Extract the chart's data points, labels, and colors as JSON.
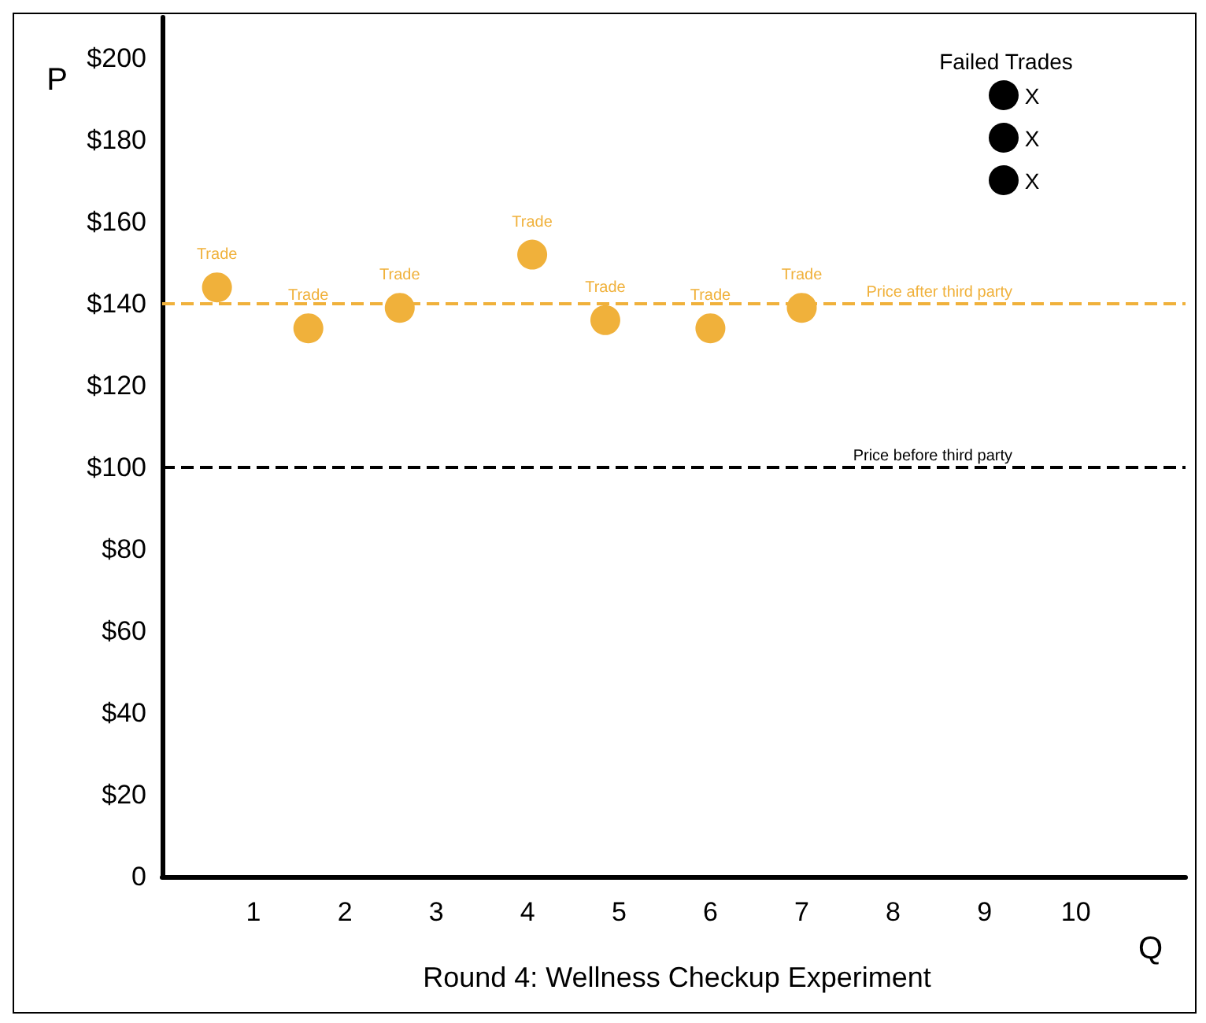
{
  "chart_data": {
    "type": "scatter",
    "title": "Round 4: Wellness Checkup Experiment",
    "xlabel": "Q",
    "ylabel": "P",
    "x": [
      0.6,
      1.6,
      2.6,
      4.05,
      4.85,
      6.0,
      7.0
    ],
    "series": [
      {
        "color": "#f0b13b",
        "values": [
          144,
          134,
          139,
          152,
          136,
          134,
          139
        ],
        "value_labels": [
          "Trade",
          "Trade",
          "Trade",
          "Trade",
          "Trade",
          "Trade",
          "Trade"
        ]
      }
    ],
    "xlim": [
      0,
      11.2
    ],
    "xticks": [
      1,
      2,
      3,
      4,
      5,
      6,
      7,
      8,
      9,
      10
    ],
    "ylim": [
      0,
      210
    ],
    "yticks": [
      {
        "value": 0,
        "label": "0"
      },
      {
        "value": 20,
        "label": "$20"
      },
      {
        "value": 40,
        "label": "$40"
      },
      {
        "value": 60,
        "label": "$60"
      },
      {
        "value": 80,
        "label": "$80"
      },
      {
        "value": 100,
        "label": "$100"
      },
      {
        "value": 120,
        "label": "$120"
      },
      {
        "value": 140,
        "label": "$140"
      },
      {
        "value": 160,
        "label": "$160"
      },
      {
        "value": 180,
        "label": "$180"
      },
      {
        "value": 200,
        "label": "$200"
      }
    ],
    "ref_lines": [
      {
        "axis": "y",
        "value": 140,
        "label": "Price after third party",
        "color": "#f0b13b",
        "line_style": "dashed"
      },
      {
        "axis": "y",
        "value": 100,
        "label": "Price before third party",
        "color": "#000000",
        "line_style": "dashed"
      }
    ],
    "annotations": [
      "Failed Trades",
      "X",
      "X",
      "X"
    ],
    "marker": "circle"
  }
}
